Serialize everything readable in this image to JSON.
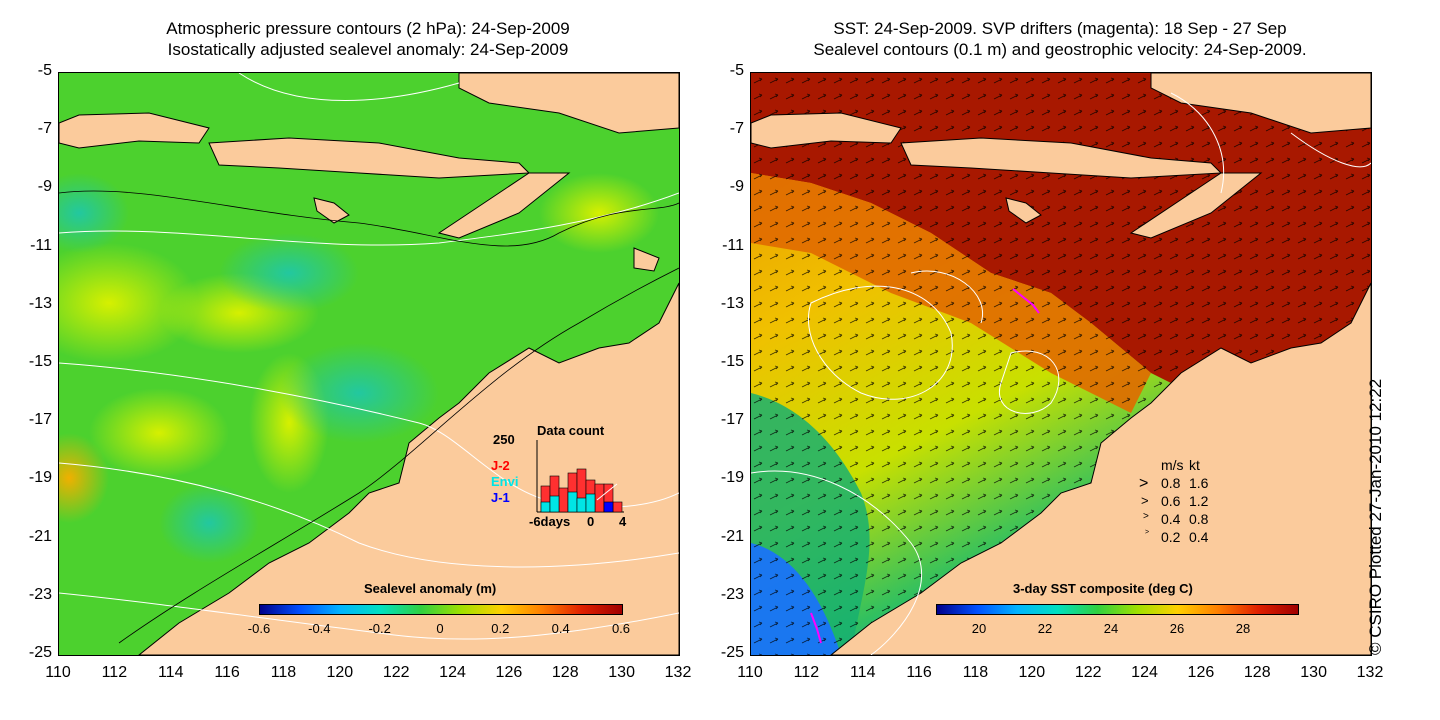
{
  "left": {
    "title_line1": "Atmospheric pressure contours (2 hPa): 24-Sep-2009",
    "title_line2": "Isostatically adjusted sealevel anomaly: 24-Sep-2009",
    "colorbar_title": "Sealevel anomaly (m)",
    "colorbar_ticks": [
      "-0.6",
      "-0.4",
      "-0.2",
      "0",
      "0.2",
      "0.4",
      "0.6"
    ],
    "inset": {
      "title": "Data count",
      "y_max_label": "250",
      "x_labels": [
        "-6days",
        "0",
        "4"
      ],
      "legend": [
        {
          "label": "J-2",
          "color": "#ff0000"
        },
        {
          "label": "Envi",
          "color": "#00e5e5"
        },
        {
          "label": "J-1",
          "color": "#0000ff"
        }
      ]
    }
  },
  "right": {
    "title_line1": "SST: 24-Sep-2009. SVP drifters (magenta): 18 Sep - 27 Sep",
    "title_line2": "Sealevel contours (0.1 m) and geostrophic velocity: 24-Sep-2009.",
    "colorbar_title": "3-day SST composite (deg C)",
    "colorbar_ticks": [
      "20",
      "22",
      "24",
      "26",
      "28"
    ],
    "speed_legend": {
      "headers": [
        "m/s",
        "kt"
      ],
      "rows": [
        [
          "0.8",
          "1.6"
        ],
        [
          "0.6",
          "1.2"
        ],
        [
          "0.4",
          "0.8"
        ],
        [
          "0.2",
          "0.4"
        ]
      ]
    }
  },
  "axes": {
    "y_ticks": [
      "-5",
      "-7",
      "-9",
      "-11",
      "-13",
      "-15",
      "-17",
      "-19",
      "-21",
      "-23",
      "-25"
    ],
    "x_ticks": [
      "110",
      "112",
      "114",
      "116",
      "118",
      "120",
      "122",
      "124",
      "126",
      "128",
      "130",
      "132"
    ]
  },
  "credit": "© CSIRO Plotted 27-Jan-2010 12:22",
  "colors": {
    "land": "#fbcb9c",
    "sea_green": "#4cd12e",
    "sst_warm": "#b01a00",
    "sst_orange": "#e87a00"
  }
}
